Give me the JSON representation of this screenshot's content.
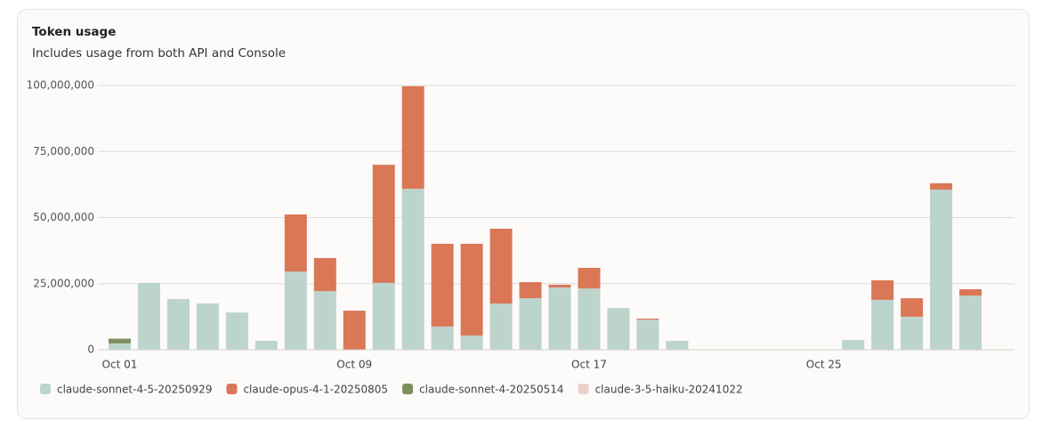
{
  "chart_data": {
    "type": "bar",
    "stacked": true,
    "title": "Token usage",
    "subtitle": "Includes usage from both API and Console",
    "categories": [
      "Oct 01",
      null,
      null,
      null,
      null,
      null,
      null,
      null,
      "Oct 09",
      null,
      null,
      null,
      null,
      null,
      null,
      null,
      "Oct 17",
      null,
      null,
      null,
      null,
      null,
      null,
      null,
      "Oct 25",
      null,
      null,
      null,
      null,
      null,
      null
    ],
    "series": [
      {
        "name": "claude-sonnet-4-5-20250929",
        "color": "#bcd4cc",
        "values": [
          2400000,
          25300000,
          19200000,
          17500000,
          14100000,
          3400000,
          29600000,
          22200000,
          0,
          25300000,
          60900000,
          8800000,
          5400000,
          17500000,
          19500000,
          23600000,
          23200000,
          15800000,
          11400000,
          3400000,
          0,
          0,
          0,
          0,
          0,
          3700000,
          18900000,
          12500000,
          60600000,
          20500000,
          0
        ]
      },
      {
        "name": "claude-opus-4-1-20250805",
        "color": "#d97757",
        "values": [
          0,
          0,
          0,
          0,
          0,
          0,
          21600000,
          12500000,
          14800000,
          44700000,
          38800000,
          31300000,
          34700000,
          28300000,
          6100000,
          1000000,
          7800000,
          0,
          400000,
          0,
          0,
          0,
          0,
          0,
          0,
          0,
          7400000,
          7000000,
          2400000,
          2400000,
          0
        ]
      },
      {
        "name": "claude-sonnet-4-20250514",
        "color": "#7d8f5f",
        "values": [
          1800000,
          0,
          0,
          0,
          0,
          0,
          0,
          0,
          0,
          0,
          0,
          0,
          0,
          0,
          0,
          0,
          0,
          0,
          0,
          0,
          0,
          0,
          0,
          0,
          0,
          0,
          0,
          0,
          0,
          0,
          0
        ]
      },
      {
        "name": "claude-3-5-haiku-20241022",
        "color": "#ebcfcd",
        "values": [
          0,
          0,
          0,
          0,
          0,
          0,
          0,
          0,
          0,
          0,
          0,
          0,
          0,
          0,
          0,
          0,
          0,
          0,
          0,
          0,
          0,
          0,
          0,
          0,
          0,
          0,
          0,
          0,
          0,
          0,
          0
        ]
      }
    ],
    "ylim": [
      0,
      100000000
    ],
    "yticks": [
      0,
      {
        "value": 25000000,
        "label": "25,000,000"
      },
      {
        "value": 50000000,
        "label": "50,000,000"
      },
      {
        "value": 75000000,
        "label": "75,000,000"
      },
      {
        "value": 100000000,
        "label": "100,000,000"
      }
    ],
    "grid": true
  }
}
